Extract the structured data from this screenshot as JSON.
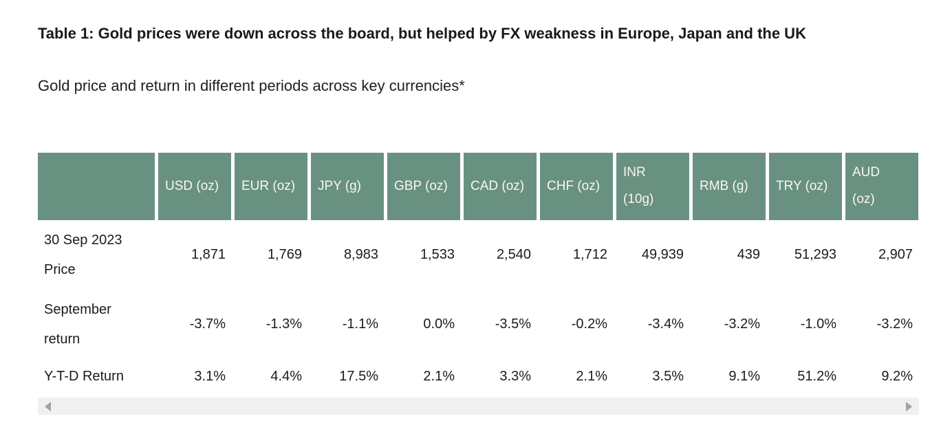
{
  "figure": {
    "title": "Table 1: Gold prices were down across the board, but helped by FX weakness in Europe, Japan and the UK",
    "subtitle": "Gold price and return in different periods across key currencies*"
  },
  "table": {
    "columns": [
      "",
      "USD (oz)",
      "EUR (oz)",
      "JPY (g)",
      "GBP (oz)",
      "CAD (oz)",
      "CHF (oz)",
      "INR\n(10g)",
      "RMB (g)",
      "TRY (oz)",
      "AUD\n(oz)"
    ],
    "rows": [
      {
        "label": "30 Sep 2023 Price",
        "values": [
          "1,871",
          "1,769",
          "8,983",
          "1,533",
          "2,540",
          "1,712",
          "49,939",
          "439",
          "51,293",
          "2,907"
        ]
      },
      {
        "label": "September return",
        "values": [
          "-3.7%",
          "-1.3%",
          "-1.1%",
          "0.0%",
          "-3.5%",
          "-0.2%",
          "-3.4%",
          "-3.2%",
          "-1.0%",
          "-3.2%"
        ]
      },
      {
        "label": "Y-T-D Return",
        "values": [
          "3.1%",
          "4.4%",
          "17.5%",
          "2.1%",
          "3.3%",
          "2.1%",
          "3.5%",
          "9.1%",
          "51.2%",
          "9.2%"
        ]
      }
    ]
  },
  "scrollbar": {
    "left_arrow_icon": "scroll-left-triangle",
    "right_arrow_icon": "scroll-right-triangle"
  },
  "colors": {
    "header_bg": "#699182",
    "header_text": "#f9f7f2",
    "body_text": "#1b1b1b",
    "scrollbar_track": "#f0f0f0",
    "scrollbar_arrow": "#a3a3a3",
    "page_bg": "#ffffff"
  },
  "chart_data": {
    "type": "table",
    "title": "Table 1: Gold prices were down across the board, but helped by FX weakness in Europe, Japan and the UK",
    "subtitle": "Gold price and return in different periods across key currencies*",
    "columns": [
      "USD (oz)",
      "EUR (oz)",
      "JPY (g)",
      "GBP (oz)",
      "CAD (oz)",
      "CHF (oz)",
      "INR (10g)",
      "RMB (g)",
      "TRY (oz)",
      "AUD (oz)"
    ],
    "rows": [
      {
        "label": "30 Sep 2023 Price",
        "unit": "price",
        "values": [
          1871,
          1769,
          8983,
          1533,
          2540,
          1712,
          49939,
          439,
          51293,
          2907
        ]
      },
      {
        "label": "September return",
        "unit": "percent",
        "values": [
          -3.7,
          -1.3,
          -1.1,
          0.0,
          -3.5,
          -0.2,
          -3.4,
          -3.2,
          -1.0,
          -3.2
        ]
      },
      {
        "label": "Y-T-D Return",
        "unit": "percent",
        "values": [
          3.1,
          4.4,
          17.5,
          2.1,
          3.3,
          2.1,
          3.5,
          9.1,
          51.2,
          9.2
        ]
      }
    ]
  }
}
